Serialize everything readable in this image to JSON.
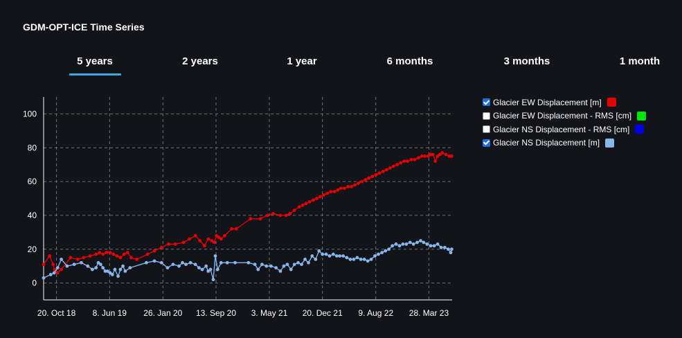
{
  "title": "GDM-OPT-ICE Time Series",
  "tabs": [
    {
      "label": "5 years",
      "active": true
    },
    {
      "label": "2 years",
      "active": false
    },
    {
      "label": "1 year",
      "active": false
    },
    {
      "label": "6 months",
      "active": false
    },
    {
      "label": "3 months",
      "active": false
    },
    {
      "label": "1 month",
      "active": false
    }
  ],
  "legend": [
    {
      "label": "Glacier EW Displacement [m]",
      "checked": true,
      "color": "#e80000"
    },
    {
      "label": "Glacier EW Displacement - RMS [cm]",
      "checked": false,
      "color": "#00e600"
    },
    {
      "label": "Glacier NS Displacement - RMS [cm]",
      "checked": false,
      "color": "#0000e6"
    },
    {
      "label": "Glacier NS Displacement [m]",
      "checked": true,
      "color": "#86b6ea"
    }
  ],
  "chart_data": {
    "type": "line",
    "ylim": [
      -10,
      110
    ],
    "y_ticks": [
      0,
      20,
      40,
      60,
      80,
      100
    ],
    "xlim": [
      "2018-08-25",
      "2023-07-07"
    ],
    "x_ticks": [
      "2018-10-20",
      "2019-06-08",
      "2020-01-26",
      "2020-09-13",
      "2021-05-03",
      "2021-12-20",
      "2022-08-09",
      "2023-03-28"
    ],
    "x_tick_labels": [
      "20. Oct 18",
      "8. Jun 19",
      "26. Jan 20",
      "13. Sep 20",
      "3. May 21",
      "20. Dec 21",
      "9. Aug 22",
      "28. Mar 23"
    ],
    "grid": true,
    "series": [
      {
        "name": "Glacier EW Displacement [m]",
        "color": "#e80000",
        "x": [
          "2018-08-25",
          "2018-09-20",
          "2018-10-05",
          "2018-10-12",
          "2018-10-25",
          "2018-11-10",
          "2018-12-20",
          "2019-01-20",
          "2019-02-15",
          "2019-03-15",
          "2019-04-10",
          "2019-04-25",
          "2019-05-10",
          "2019-05-25",
          "2019-06-10",
          "2019-06-25",
          "2019-07-10",
          "2019-07-25",
          "2019-08-10",
          "2019-08-25",
          "2019-09-10",
          "2019-10-05",
          "2019-11-20",
          "2019-12-20",
          "2020-01-20",
          "2020-02-20",
          "2020-03-20",
          "2020-04-25",
          "2020-05-20",
          "2020-06-15",
          "2020-07-05",
          "2020-07-25",
          "2020-08-10",
          "2020-08-25",
          "2020-09-05",
          "2020-09-15",
          "2020-09-25",
          "2020-10-05",
          "2020-10-20",
          "2020-11-20",
          "2020-12-10",
          "2021-02-10",
          "2021-03-25",
          "2021-04-25",
          "2021-05-20",
          "2021-06-20",
          "2021-07-15",
          "2021-08-01",
          "2021-08-20",
          "2021-09-10",
          "2021-09-25",
          "2021-10-10",
          "2021-10-25",
          "2021-11-10",
          "2021-11-25",
          "2021-12-10",
          "2021-12-25",
          "2022-01-10",
          "2022-01-25",
          "2022-02-10",
          "2022-02-25",
          "2022-03-10",
          "2022-03-25",
          "2022-04-10",
          "2022-04-25",
          "2022-05-10",
          "2022-05-25",
          "2022-06-10",
          "2022-06-25",
          "2022-07-10",
          "2022-07-25",
          "2022-08-10",
          "2022-08-25",
          "2022-09-10",
          "2022-09-25",
          "2022-10-10",
          "2022-10-25",
          "2022-11-10",
          "2022-11-25",
          "2022-12-10",
          "2022-12-25",
          "2023-01-10",
          "2023-01-25",
          "2023-02-10",
          "2023-02-25",
          "2023-03-10",
          "2023-03-25",
          "2023-04-05",
          "2023-04-15",
          "2023-04-25",
          "2023-05-05",
          "2023-05-15",
          "2023-05-25",
          "2023-06-10",
          "2023-06-25",
          "2023-07-05"
        ],
        "y": [
          11,
          16,
          11,
          8,
          6,
          8,
          15,
          14,
          15,
          16,
          17,
          18,
          17,
          18,
          18,
          17,
          16,
          15,
          17,
          18,
          15,
          14,
          17,
          19,
          21,
          23,
          23,
          24,
          26,
          28,
          25,
          22,
          26,
          25,
          24,
          28,
          27,
          26,
          28,
          32,
          32,
          38,
          38,
          40,
          41,
          40,
          40,
          41,
          43,
          45,
          46,
          47,
          48,
          49,
          50,
          51,
          52,
          53,
          54,
          54,
          55,
          56,
          56,
          57,
          57,
          58,
          59,
          60,
          61,
          62,
          63,
          64,
          65,
          66,
          67,
          68,
          69,
          70,
          71,
          72,
          72,
          73,
          73,
          74,
          75,
          75,
          75,
          76,
          76,
          72,
          75,
          76,
          77,
          76,
          75,
          75
        ]
      },
      {
        "name": "Glacier NS Displacement [m]",
        "color": "#86b6ea",
        "x": [
          "2018-08-25",
          "2018-09-25",
          "2018-10-10",
          "2018-10-25",
          "2018-11-10",
          "2018-12-05",
          "2019-01-05",
          "2019-02-05",
          "2019-03-05",
          "2019-03-25",
          "2019-04-10",
          "2019-04-20",
          "2019-04-30",
          "2019-05-10",
          "2019-05-20",
          "2019-05-30",
          "2019-06-10",
          "2019-06-20",
          "2019-07-01",
          "2019-07-15",
          "2019-07-25",
          "2019-08-05",
          "2019-08-15",
          "2019-09-05",
          "2019-11-15",
          "2019-12-20",
          "2020-01-20",
          "2020-02-15",
          "2020-03-10",
          "2020-04-05",
          "2020-04-20",
          "2020-05-05",
          "2020-05-25",
          "2020-06-15",
          "2020-07-01",
          "2020-07-15",
          "2020-08-01",
          "2020-08-10",
          "2020-08-20",
          "2020-09-01",
          "2020-09-10",
          "2020-09-20",
          "2020-10-05",
          "2020-11-01",
          "2020-12-05",
          "2021-02-01",
          "2021-03-01",
          "2021-03-15",
          "2021-04-01",
          "2021-04-20",
          "2021-05-10",
          "2021-06-01",
          "2021-06-20",
          "2021-07-05",
          "2021-07-20",
          "2021-08-05",
          "2021-08-20",
          "2021-09-05",
          "2021-09-20",
          "2021-10-05",
          "2021-10-20",
          "2021-11-05",
          "2021-11-20",
          "2021-12-05",
          "2021-12-20",
          "2022-01-05",
          "2022-01-20",
          "2022-02-05",
          "2022-02-20",
          "2022-03-05",
          "2022-03-20",
          "2022-04-05",
          "2022-04-20",
          "2022-05-05",
          "2022-05-20",
          "2022-06-05",
          "2022-06-20",
          "2022-07-05",
          "2022-07-20",
          "2022-08-05",
          "2022-08-20",
          "2022-09-05",
          "2022-09-20",
          "2022-10-05",
          "2022-10-20",
          "2022-11-05",
          "2022-11-20",
          "2022-12-05",
          "2022-12-20",
          "2023-01-05",
          "2023-01-20",
          "2023-02-05",
          "2023-02-20",
          "2023-03-05",
          "2023-03-20",
          "2023-04-05",
          "2023-04-20",
          "2023-05-05",
          "2023-05-20",
          "2023-06-05",
          "2023-06-20",
          "2023-07-01",
          "2023-07-05"
        ],
        "y": [
          3,
          5,
          6,
          9,
          14,
          10,
          11,
          12,
          10,
          8,
          9,
          12,
          11,
          9,
          7,
          7,
          6,
          5,
          8,
          4,
          8,
          10,
          7,
          9,
          12,
          13,
          12,
          9,
          11,
          10,
          12,
          11,
          12,
          11,
          9,
          8,
          10,
          7,
          8,
          2,
          16,
          8,
          12,
          12,
          12,
          12,
          11,
          8,
          11,
          10,
          10,
          9,
          7,
          10,
          11,
          8,
          11,
          12,
          11,
          14,
          12,
          16,
          14,
          19,
          17,
          17,
          16,
          17,
          16,
          16,
          16,
          15,
          14,
          14,
          15,
          14,
          14,
          13,
          14,
          16,
          17,
          18,
          19,
          20,
          22,
          23,
          22,
          23,
          23,
          24,
          23,
          24,
          25,
          24,
          23,
          22,
          22,
          23,
          21,
          21,
          20,
          18,
          20
        ]
      }
    ]
  }
}
